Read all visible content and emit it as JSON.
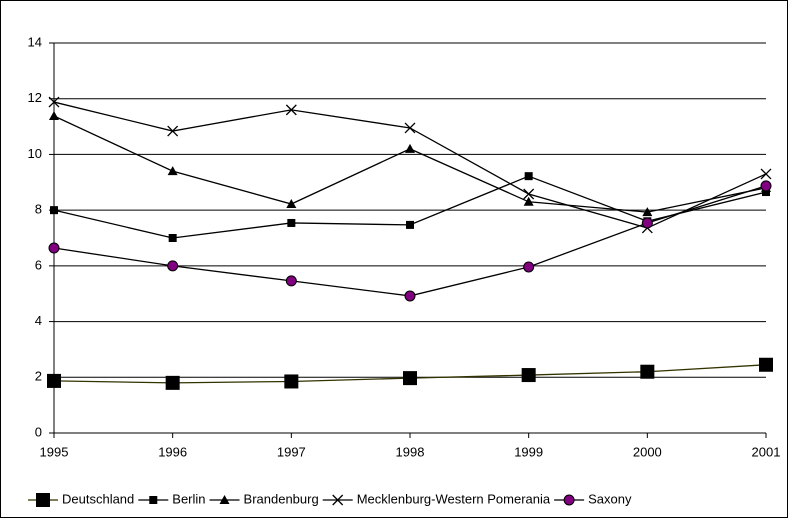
{
  "chart_data": {
    "type": "line",
    "x": [
      1995,
      1996,
      1997,
      1998,
      1999,
      2000,
      2001
    ],
    "xlim": [
      1995,
      2001
    ],
    "xticks": [
      1995,
      1996,
      1997,
      1998,
      1999,
      2000,
      2001
    ],
    "ylim": [
      0,
      14
    ],
    "yticks": [
      0,
      2,
      4,
      6,
      8,
      10,
      12,
      14
    ],
    "grid": true,
    "legend": "bottom",
    "series": [
      {
        "name": "Deutschland",
        "color": "#333300",
        "marker": "big-square",
        "marker_color": "#000000",
        "values": [
          1.87,
          1.8,
          1.85,
          1.97,
          2.08,
          2.2,
          2.45
        ]
      },
      {
        "name": "Berlin",
        "color": "#000000",
        "marker": "square",
        "marker_color": "#000000",
        "values": [
          8.0,
          7.0,
          7.54,
          7.47,
          9.22,
          7.6,
          8.65
        ]
      },
      {
        "name": "Brandenburg",
        "color": "#000000",
        "marker": "triangle",
        "marker_color": "#000000",
        "values": [
          11.38,
          9.4,
          8.22,
          10.2,
          8.3,
          7.93,
          8.8
        ]
      },
      {
        "name": "Mecklenburg-Western Pomerania",
        "color": "#000000",
        "marker": "cross",
        "marker_color": "#000000",
        "values": [
          11.88,
          10.84,
          11.6,
          10.95,
          8.58,
          7.36,
          9.3
        ]
      },
      {
        "name": "Saxony",
        "color": "#000000",
        "marker": "circle",
        "marker_color": "#800080",
        "values": [
          6.64,
          6.0,
          5.46,
          4.92,
          5.96,
          7.54,
          8.87
        ]
      }
    ]
  }
}
